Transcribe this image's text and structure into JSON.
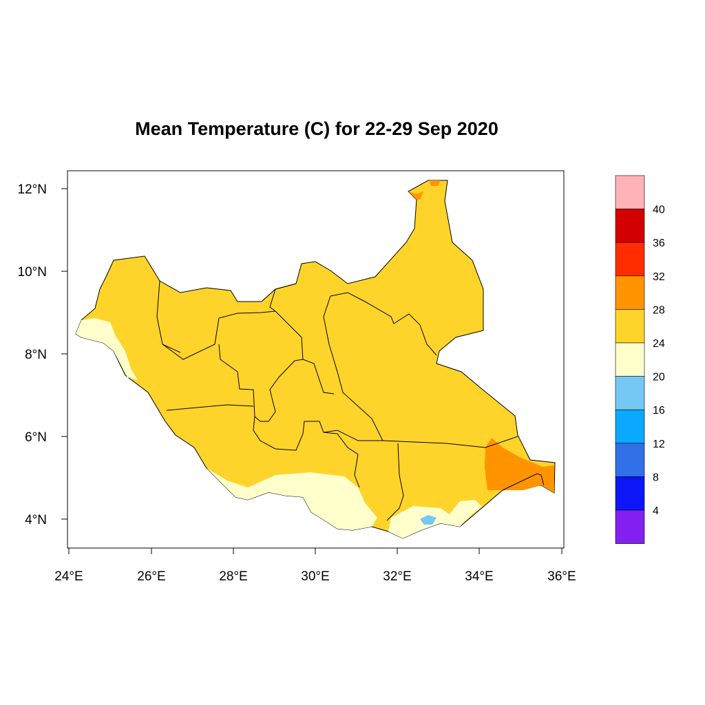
{
  "title": "Mean Temperature (C) for 22-29 Sep 2020",
  "axes": {
    "x_ticks": [
      "24°E",
      "26°E",
      "28°E",
      "30°E",
      "32°E",
      "34°E",
      "36°E"
    ],
    "y_ticks": [
      "12°N",
      "10°N",
      "8°N",
      "6°N",
      "4°N"
    ]
  },
  "legend": {
    "labels": [
      "40",
      "36",
      "32",
      "28",
      "24",
      "20",
      "16",
      "12",
      "8",
      "4"
    ],
    "colors": [
      "#ffb3b8",
      "#d20000",
      "#ff2d00",
      "#ff9400",
      "#fed42a",
      "#ffffcc",
      "#76c8f4",
      "#0aa9ff",
      "#3170e6",
      "#0c16f7",
      "#8421f0"
    ]
  },
  "colors": {
    "fill_24_28": "#fed42a",
    "fill_20_24": "#ffffcc",
    "fill_28_32": "#ff9400",
    "fill_16_20": "#76c8f4",
    "outline": "#000000"
  }
}
